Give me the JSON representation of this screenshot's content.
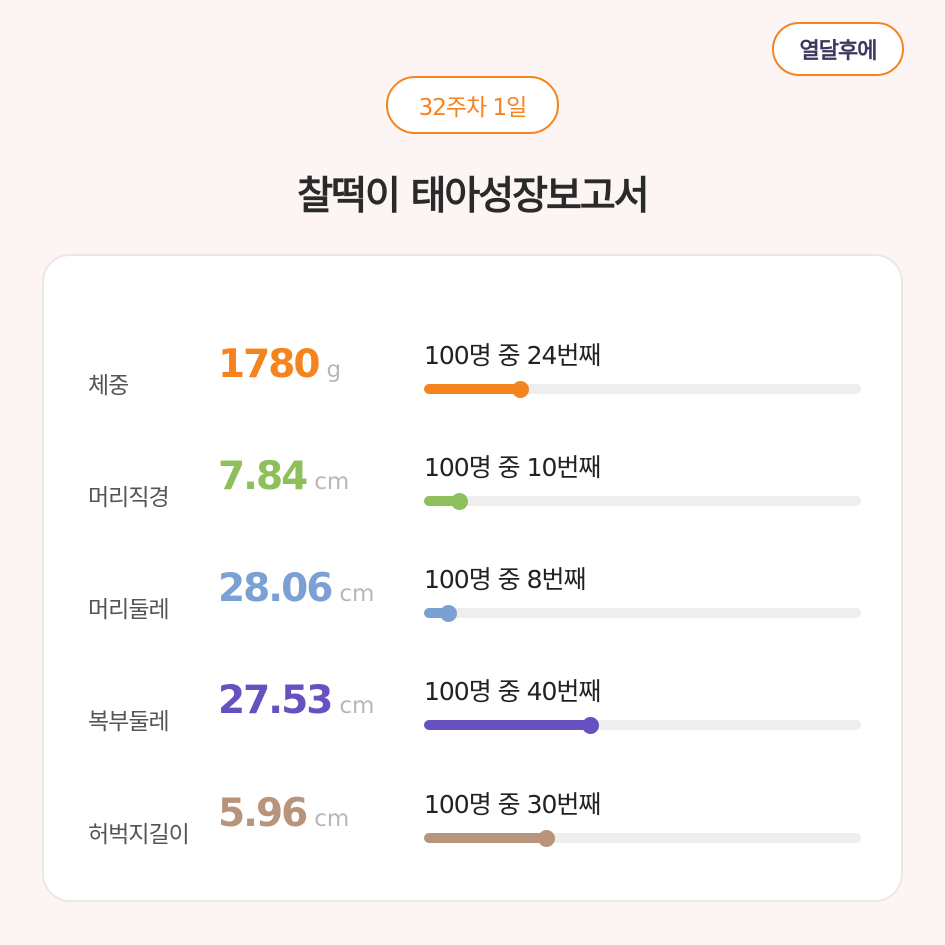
{
  "header": {
    "brand": "열달후에",
    "week_label": "32주차 1일",
    "title": "찰떡이 태아성장보고서"
  },
  "metrics": [
    {
      "label": "체중",
      "value": "1780",
      "unit": "g",
      "rank_text": "100명 중 24번째",
      "percentile": 0.22,
      "color": "#f5841f"
    },
    {
      "label": "머리직경",
      "value": "7.84",
      "unit": "cm",
      "rank_text": "100명 중 10번째",
      "percentile": 0.08,
      "color": "#8dc05a"
    },
    {
      "label": "머리둘레",
      "value": "28.06",
      "unit": "cm",
      "rank_text": "100명 중 8번째",
      "percentile": 0.055,
      "color": "#7ba1d4"
    },
    {
      "label": "복부둘레",
      "value": "27.53",
      "unit": "cm",
      "rank_text": "100명 중 40번째",
      "percentile": 0.38,
      "color": "#6750c0"
    },
    {
      "label": "허벅지길이",
      "value": "5.96",
      "unit": "cm",
      "rank_text": "100명 중 30번째",
      "percentile": 0.28,
      "color": "#b8957a"
    }
  ]
}
